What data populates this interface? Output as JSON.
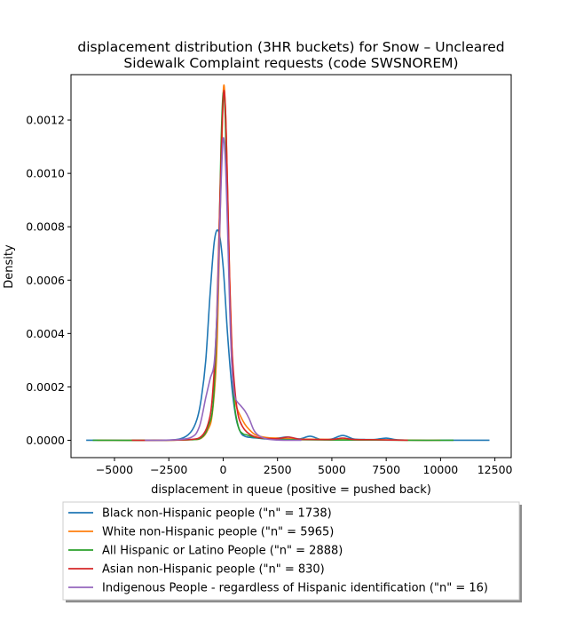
{
  "chart_data": {
    "type": "line",
    "title_lines": [
      "displacement distribution (3HR buckets) for Snow – Uncleared",
      "Sidewalk Complaint requests (code SWSNOREM)"
    ],
    "xlabel": "displacement in queue (positive = pushed back)",
    "ylabel": "Density",
    "xlim": [
      -7000,
      13250
    ],
    "ylim": [
      -6.5e-05,
      0.00137
    ],
    "xticks": [
      -5000,
      -2500,
      0,
      2500,
      5000,
      7500,
      10000,
      12500
    ],
    "xtick_labels": [
      "−5000",
      "−2500",
      "0",
      "2500",
      "5000",
      "7500",
      "10000",
      "12500"
    ],
    "yticks": [
      0,
      0.0002,
      0.0004,
      0.0006,
      0.0008,
      0.001,
      0.0012
    ],
    "ytick_labels": [
      "0.0000",
      "0.0002",
      "0.0004",
      "0.0006",
      "0.0008",
      "0.0010",
      "0.0012"
    ],
    "legend_position": "below plot",
    "series": [
      {
        "name": "Black non-Hispanic people (\"n\" = 1738)",
        "color": "#1f77b4",
        "x": [
          -6300,
          -5000,
          -3000,
          -2000,
          -1500,
          -1200,
          -1000,
          -800,
          -600,
          -400,
          -200,
          0,
          200,
          400,
          600,
          800,
          1000,
          1300,
          1600,
          2000,
          2500,
          3000,
          3500,
          4000,
          4500,
          5000,
          5500,
          6000,
          6500,
          7000,
          7500,
          8000,
          9000,
          10000,
          11000,
          12250
        ],
        "y": [
          0,
          0,
          0,
          5e-06,
          3e-05,
          8e-05,
          0.00016,
          0.0003,
          0.00055,
          0.00075,
          0.00078,
          0.00065,
          0.0004,
          0.0002,
          8e-05,
          3e-05,
          1.5e-05,
          1e-05,
          8e-06,
          5e-06,
          8e-06,
          1.2e-05,
          5e-06,
          1.5e-05,
          3e-06,
          5e-06,
          1.8e-05,
          5e-06,
          3e-06,
          3e-06,
          8e-06,
          2e-06,
          0,
          0,
          0,
          0
        ]
      },
      {
        "name": "White non-Hispanic people (\"n\" = 5965)",
        "color": "#ff7f0e",
        "x": [
          -5800,
          -3000,
          -1500,
          -1000,
          -700,
          -500,
          -300,
          -150,
          0,
          100,
          200,
          300,
          400,
          500,
          600,
          800,
          1000,
          1200,
          1500,
          2000,
          2500,
          3000,
          3500,
          4000,
          5000,
          6000,
          7000,
          8000,
          9000,
          10000
        ],
        "y": [
          0,
          0,
          2e-06,
          8e-06,
          4e-05,
          0.0001,
          0.00032,
          0.0008,
          0.0013,
          0.00125,
          0.00095,
          0.0006,
          0.00035,
          0.0002,
          0.00013,
          9e-05,
          6e-05,
          4e-05,
          2e-05,
          1e-05,
          8e-06,
          6e-06,
          4e-06,
          4e-06,
          3e-06,
          2e-06,
          2e-06,
          1e-06,
          0,
          0
        ]
      },
      {
        "name": "All Hispanic or Latino People (\"n\" = 2888)",
        "color": "#2ca02c",
        "x": [
          -6000,
          -3000,
          -1500,
          -1000,
          -700,
          -450,
          -250,
          -100,
          0,
          100,
          200,
          350,
          500,
          700,
          900,
          1100,
          1400,
          1800,
          2500,
          3500,
          5000,
          7000,
          8500,
          10600
        ],
        "y": [
          0,
          0,
          2e-06,
          1e-05,
          5e-05,
          0.00015,
          0.00055,
          0.0011,
          0.0013,
          0.0012,
          0.00085,
          0.0004,
          0.00015,
          5e-05,
          2.5e-05,
          2e-05,
          1.2e-05,
          7e-06,
          4e-06,
          2e-06,
          1e-06,
          1e-06,
          0,
          0
        ]
      },
      {
        "name": "Asian non-Hispanic people (\"n\" = 830)",
        "color": "#d62728",
        "x": [
          -4200,
          -3000,
          -1500,
          -1000,
          -700,
          -500,
          -300,
          -150,
          0,
          100,
          200,
          300,
          400,
          550,
          700,
          900,
          1100,
          1400,
          1800,
          2500,
          3000,
          3500,
          4000,
          5000,
          5500,
          6000,
          7000,
          8500
        ],
        "y": [
          0,
          0,
          3e-06,
          1.5e-05,
          6e-05,
          0.00016,
          0.00045,
          0.0009,
          0.00128,
          0.00125,
          0.00095,
          0.0006,
          0.00035,
          0.00018,
          9e-05,
          5e-05,
          3e-05,
          1.5e-05,
          8e-06,
          6e-06,
          1.2e-05,
          4e-06,
          3e-06,
          3e-06,
          8e-06,
          3e-06,
          2e-06,
          0
        ]
      },
      {
        "name": "Indigenous People - regardless of Hispanic identification (\"n\" = 16)",
        "color": "#9467bd",
        "x": [
          -3600,
          -2500,
          -1500,
          -1100,
          -800,
          -600,
          -400,
          -250,
          -100,
          0,
          100,
          200,
          300,
          400,
          500,
          600,
          800,
          1000,
          1200,
          1400,
          1600,
          2000,
          2500,
          3000,
          3600
        ],
        "y": [
          0,
          1e-06,
          1e-05,
          5e-05,
          0.00016,
          0.00023,
          0.0003,
          0.00055,
          0.00095,
          0.00113,
          0.00105,
          0.0008,
          0.0005,
          0.00028,
          0.00018,
          0.00015,
          0.00013,
          0.00011,
          8e-05,
          4e-05,
          2e-05,
          5e-06,
          1e-06,
          0,
          0
        ]
      }
    ]
  }
}
